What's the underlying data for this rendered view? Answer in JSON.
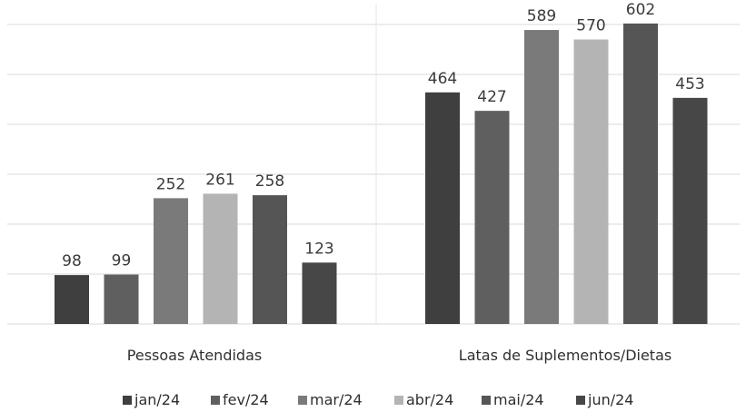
{
  "chart_data": {
    "type": "bar",
    "categories": [
      "Pessoas Atendidas",
      "Latas de Suplementos/Dietas"
    ],
    "series": [
      {
        "name": "jan/24",
        "values": [
          98,
          464
        ],
        "color": "#3f3f3f"
      },
      {
        "name": "fev/24",
        "values": [
          99,
          427
        ],
        "color": "#5f5f5f"
      },
      {
        "name": "mar/24",
        "values": [
          252,
          589
        ],
        "color": "#7a7a7a"
      },
      {
        "name": "abr/24",
        "values": [
          261,
          570
        ],
        "color": "#b4b4b4"
      },
      {
        "name": "mai/24",
        "values": [
          258,
          602
        ],
        "color": "#555555"
      },
      {
        "name": "jun/24",
        "values": [
          123,
          453
        ],
        "color": "#474747"
      }
    ],
    "ylim": [
      0,
      640
    ],
    "grid": true,
    "legend_position": "bottom"
  }
}
